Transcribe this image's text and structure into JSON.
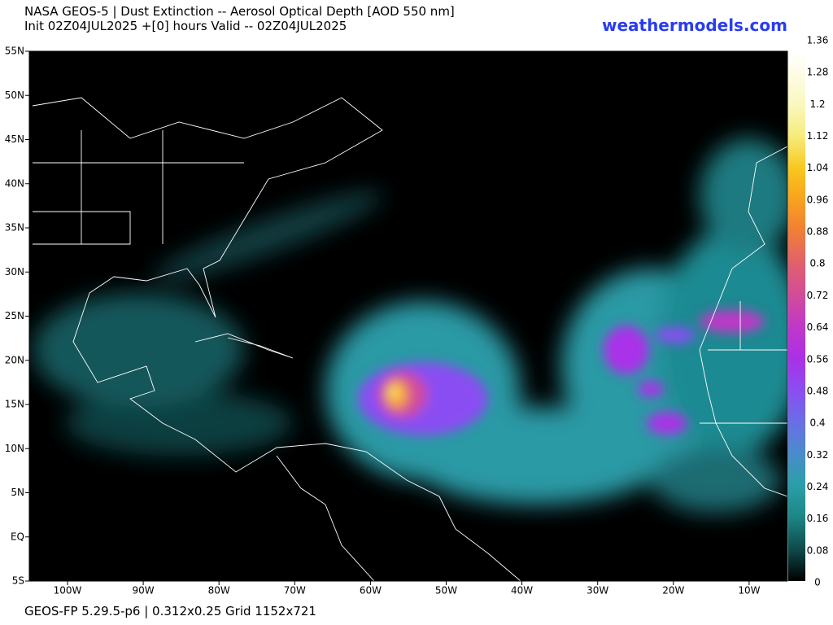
{
  "header": {
    "title": "NASA GEOS-5 | Dust Extinction -- Aerosol Optical Depth [AOD 550 nm]",
    "subtitle": "Init 02Z04JUL2025 +[0] hours Valid -- 02Z04JUL2025",
    "site": "weathermodels.com"
  },
  "map": {
    "lat_labels": [
      "55N",
      "50N",
      "45N",
      "40N",
      "35N",
      "30N",
      "25N",
      "20N",
      "15N",
      "10N",
      "5N",
      "EQ",
      "5S"
    ],
    "lon_labels": [
      "100W",
      "90W",
      "80W",
      "70W",
      "60W",
      "50W",
      "40W",
      "30W",
      "20W",
      "10W"
    ]
  },
  "colorbar": {
    "lim": [
      0,
      1.36
    ],
    "ticks": [
      0,
      0.08,
      0.16,
      0.24,
      0.32,
      0.4,
      0.48,
      0.56,
      0.64,
      0.72,
      0.8,
      0.88,
      0.96,
      1.04,
      1.12,
      1.2,
      1.28,
      1.36
    ]
  },
  "footer": "GEOS-FP 5.29.5-p6 | 0.312x0.25 Grid 1152x721"
}
